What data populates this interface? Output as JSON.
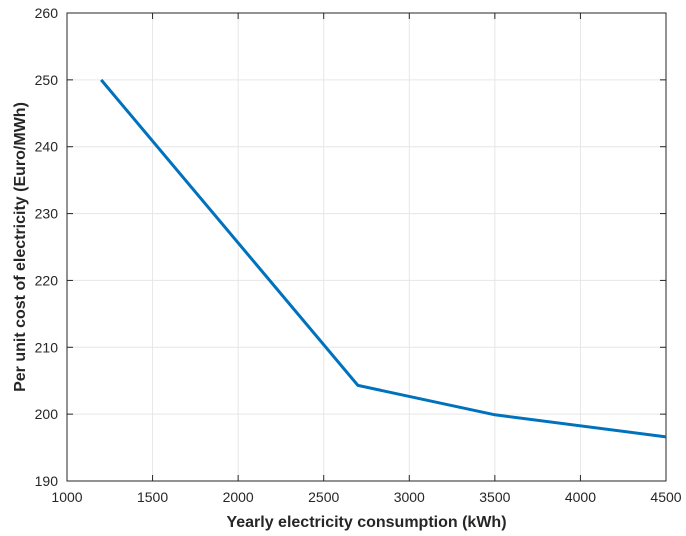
{
  "chart_data": {
    "type": "line",
    "title": "",
    "xlabel": "Yearly electricity consumption (kWh)",
    "ylabel": "Per unit cost of electricity (Euro/MWh)",
    "xlim": [
      1000,
      4500
    ],
    "ylim": [
      190,
      260
    ],
    "x_ticks": [
      1000,
      1500,
      2000,
      2500,
      3000,
      3500,
      4000,
      4500
    ],
    "y_ticks": [
      190,
      200,
      210,
      220,
      230,
      240,
      250,
      260
    ],
    "grid": true,
    "box": true,
    "series": [
      {
        "color": "#0072BD",
        "x": [
          1200,
          2700,
          3500,
          4500
        ],
        "y": [
          250,
          204.3,
          199.9,
          196.6
        ]
      }
    ]
  }
}
